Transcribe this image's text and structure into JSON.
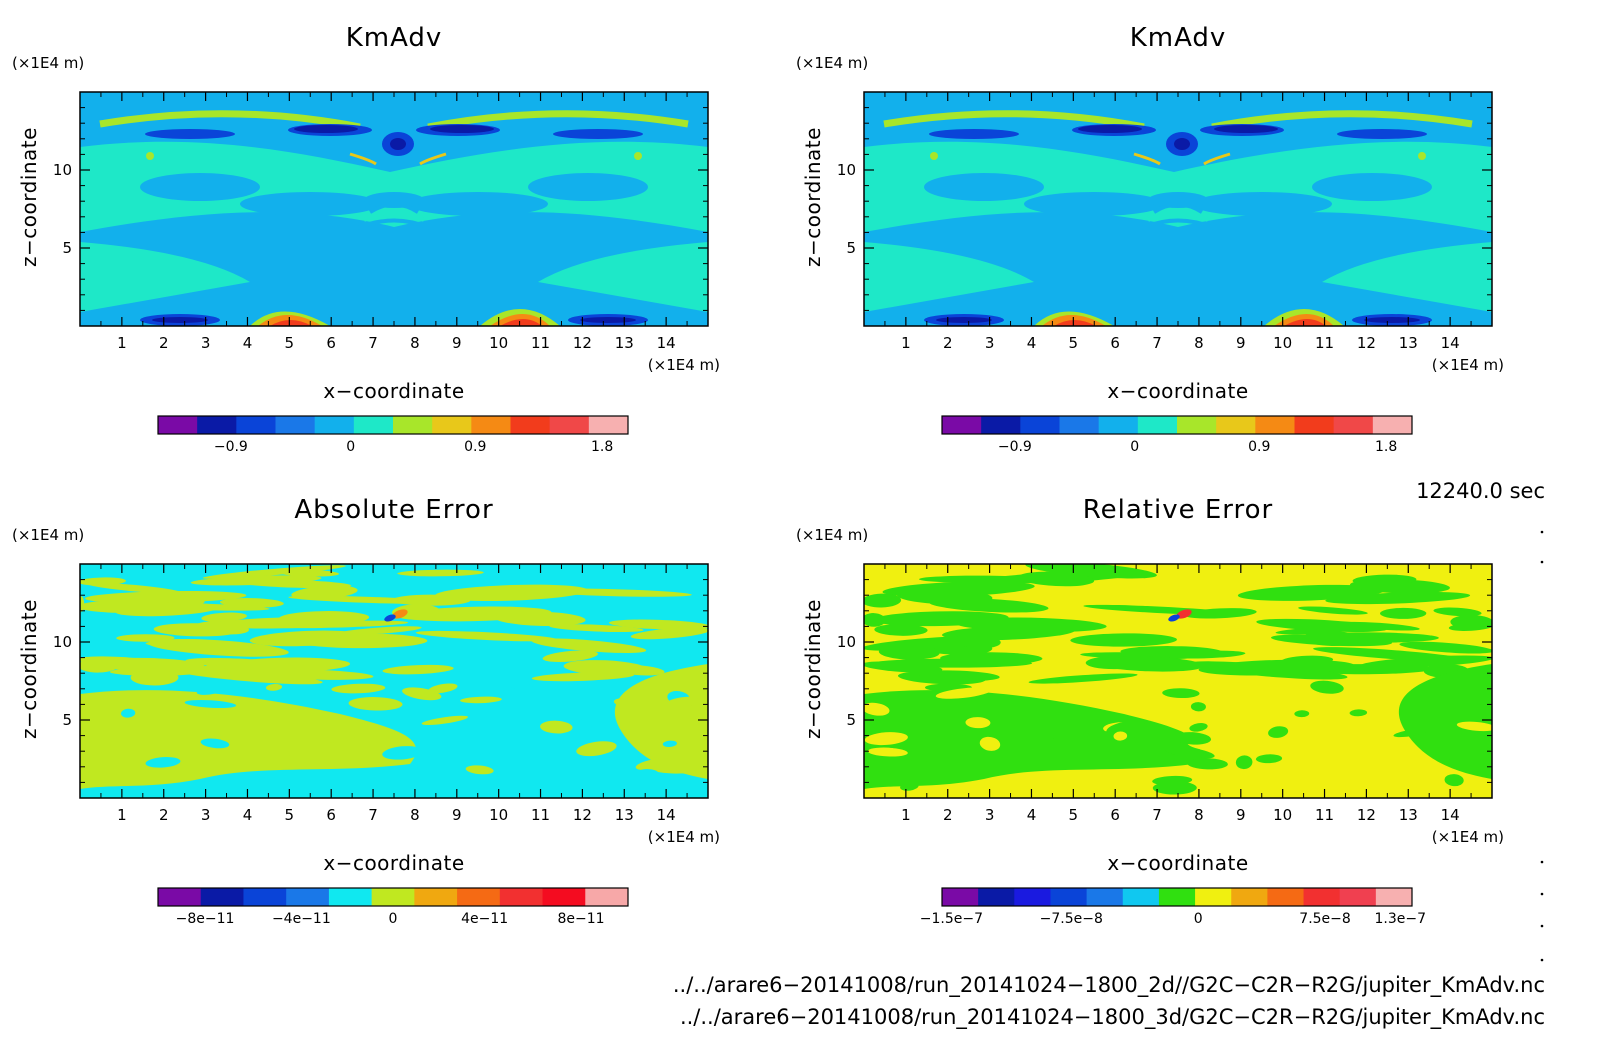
{
  "panels": [
    {
      "title": "KmAdv",
      "xlabel": "x−coordinate",
      "ylabel": "z−coordinate",
      "x_unit": "(×1E4 m)",
      "y_unit": "(×1E4 m)",
      "x_ticks": [
        "1",
        "2",
        "3",
        "4",
        "5",
        "6",
        "7",
        "8",
        "9",
        "10",
        "11",
        "12",
        "13",
        "14"
      ],
      "y_ticks": [
        "5",
        "10"
      ],
      "colorbar_labels": [
        "−0.9",
        "0",
        "0.9",
        "1.8"
      ],
      "colorbar_colors": [
        "#7a0aa6",
        "#0a1aa6",
        "#0a44d8",
        "#1a78e8",
        "#12b0ec",
        "#1ee8c8",
        "#a8e62a",
        "#e8c81a",
        "#f58a14",
        "#f23c1c",
        "#f04848",
        "#f7b0b0"
      ],
      "field_colors": {
        "base": "#12b0ec",
        "alt": "#1ee8c8",
        "light": "#a8e62a",
        "dark": "#0a44d8",
        "deep": "#0a1aa6",
        "hot": "#f58a14",
        "hotter": "#f23c1c",
        "warm": "#e8c81a"
      }
    },
    {
      "title": "KmAdv",
      "xlabel": "x−coordinate",
      "ylabel": "z−coordinate",
      "x_unit": "(×1E4 m)",
      "y_unit": "(×1E4 m)",
      "x_ticks": [
        "1",
        "2",
        "3",
        "4",
        "5",
        "6",
        "7",
        "8",
        "9",
        "10",
        "11",
        "12",
        "13",
        "14"
      ],
      "y_ticks": [
        "5",
        "10"
      ],
      "colorbar_labels": [
        "−0.9",
        "0",
        "0.9",
        "1.8"
      ],
      "colorbar_colors": [
        "#7a0aa6",
        "#0a1aa6",
        "#0a44d8",
        "#1a78e8",
        "#12b0ec",
        "#1ee8c8",
        "#a8e62a",
        "#e8c81a",
        "#f58a14",
        "#f23c1c",
        "#f04848",
        "#f7b0b0"
      ],
      "field_colors": {
        "base": "#12b0ec",
        "alt": "#1ee8c8",
        "light": "#a8e62a",
        "dark": "#0a44d8",
        "deep": "#0a1aa6",
        "hot": "#f58a14",
        "hotter": "#f23c1c",
        "warm": "#e8c81a"
      }
    },
    {
      "title": "Absolute Error",
      "xlabel": "x−coordinate",
      "ylabel": "z−coordinate",
      "x_unit": "(×1E4 m)",
      "y_unit": "(×1E4 m)",
      "x_ticks": [
        "1",
        "2",
        "3",
        "4",
        "5",
        "6",
        "7",
        "8",
        "9",
        "10",
        "11",
        "12",
        "13",
        "14"
      ],
      "y_ticks": [
        "5",
        "10"
      ],
      "colorbar_labels": [
        "−8e−11",
        "−4e−11",
        "0",
        "4e−11",
        "8e−11"
      ],
      "colorbar_colors": [
        "#7a0aa6",
        "#0a1aa6",
        "#0a44d8",
        "#1a78e8",
        "#10e8f0",
        "#c0e820",
        "#f0a810",
        "#f56a14",
        "#f23030",
        "#f40c20",
        "#f7a8a8"
      ],
      "field_colors": {
        "base": "#10e8f0",
        "alt": "#c0e820",
        "accent": "#f58a14",
        "dark": "#0a44d8"
      }
    },
    {
      "title": "Relative Error",
      "xlabel": "x−coordinate",
      "ylabel": "z−coordinate",
      "x_unit": "(×1E4 m)",
      "y_unit": "(×1E4 m)",
      "x_ticks": [
        "1",
        "2",
        "3",
        "4",
        "5",
        "6",
        "7",
        "8",
        "9",
        "10",
        "11",
        "12",
        "13",
        "14"
      ],
      "y_ticks": [
        "5",
        "10"
      ],
      "colorbar_labels": [
        "−1.5e−7",
        "−7.5e−8",
        "0",
        "7.5e−8",
        "1.3e−7"
      ],
      "colorbar_colors": [
        "#7a0aa6",
        "#0a1aa6",
        "#1a1ae0",
        "#0a44d8",
        "#1a78e8",
        "#10c8f0",
        "#30e010",
        "#f0f010",
        "#f0a810",
        "#f56a14",
        "#f23030",
        "#f04050",
        "#f7b0b0"
      ],
      "field_colors": {
        "base": "#f0f010",
        "alt": "#30e010",
        "accent": "#f23030",
        "dark": "#0a44d8"
      }
    }
  ],
  "time_label": "12240.0 sec",
  "footer_lines": [
    "../../arare6−20141008/run_20141024−1800_2d//G2C−C2R−R2G/jupiter_KmAdv.nc",
    "../../arare6−20141008/run_20141024−1800_3d/G2C−C2R−R2G/jupiter_KmAdv.nc"
  ],
  "chart_data": [
    {
      "type": "heatmap",
      "title": "KmAdv",
      "xlabel": "x−coordinate",
      "ylabel": "z−coordinate",
      "x_unit": "(×1E4 m)",
      "y_unit": "(×1E4 m)",
      "xlim": [
        0,
        15
      ],
      "ylim": [
        0,
        15
      ],
      "x_ticks": [
        1,
        2,
        3,
        4,
        5,
        6,
        7,
        8,
        9,
        10,
        11,
        12,
        13,
        14
      ],
      "y_ticks": [
        5,
        10
      ],
      "colorbar_ticks": [
        -0.9,
        0,
        0.9,
        1.8
      ]
    },
    {
      "type": "heatmap",
      "title": "KmAdv",
      "xlabel": "x−coordinate",
      "ylabel": "z−coordinate",
      "x_unit": "(×1E4 m)",
      "y_unit": "(×1E4 m)",
      "xlim": [
        0,
        15
      ],
      "ylim": [
        0,
        15
      ],
      "x_ticks": [
        1,
        2,
        3,
        4,
        5,
        6,
        7,
        8,
        9,
        10,
        11,
        12,
        13,
        14
      ],
      "y_ticks": [
        5,
        10
      ],
      "colorbar_ticks": [
        -0.9,
        0,
        0.9,
        1.8
      ]
    },
    {
      "type": "heatmap",
      "title": "Absolute Error",
      "xlabel": "x−coordinate",
      "ylabel": "z−coordinate",
      "x_unit": "(×1E4 m)",
      "y_unit": "(×1E4 m)",
      "xlim": [
        0,
        15
      ],
      "ylim": [
        0,
        15
      ],
      "x_ticks": [
        1,
        2,
        3,
        4,
        5,
        6,
        7,
        8,
        9,
        10,
        11,
        12,
        13,
        14
      ],
      "y_ticks": [
        5,
        10
      ],
      "colorbar_ticks": [
        -8e-11,
        -4e-11,
        0,
        4e-11,
        8e-11
      ]
    },
    {
      "type": "heatmap",
      "title": "Relative Error",
      "xlabel": "x−coordinate",
      "ylabel": "z−coordinate",
      "x_unit": "(×1E4 m)",
      "y_unit": "(×1E4 m)",
      "xlim": [
        0,
        15
      ],
      "ylim": [
        0,
        15
      ],
      "x_ticks": [
        1,
        2,
        3,
        4,
        5,
        6,
        7,
        8,
        9,
        10,
        11,
        12,
        13,
        14
      ],
      "y_ticks": [
        5,
        10
      ],
      "colorbar_ticks": [
        -1.5e-07,
        -7.5e-08,
        0,
        7.5e-08,
        1.3e-07
      ]
    }
  ]
}
